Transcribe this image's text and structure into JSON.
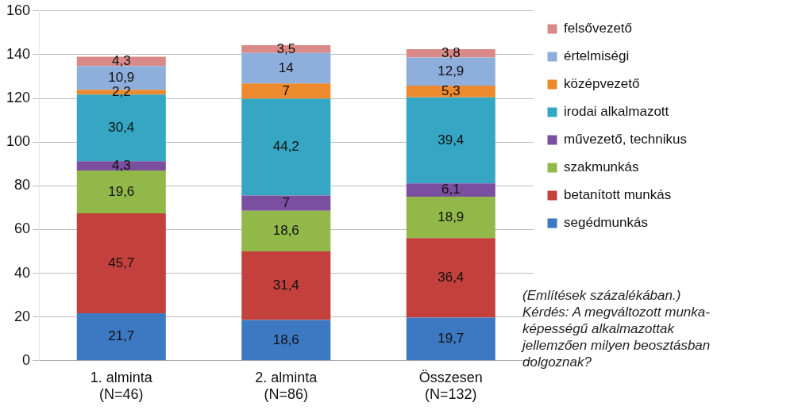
{
  "chart_data": {
    "type": "bar",
    "stacked": true,
    "categories": [
      "1. alminta\n(N=46)",
      "2. alminta\n(N=86)",
      "Összesen\n(N=132)"
    ],
    "series": [
      {
        "name": "segédmunkás",
        "color": "#3d78c2",
        "values": [
          21.7,
          18.6,
          19.7
        ],
        "value_labels": [
          "21,7",
          "18,6",
          "19,7"
        ]
      },
      {
        "name": "betanított munkás",
        "color": "#c4403d",
        "values": [
          45.7,
          31.4,
          36.4
        ],
        "value_labels": [
          "45,7",
          "31,4",
          "36,4"
        ]
      },
      {
        "name": "szakmunkás",
        "color": "#92b84a",
        "values": [
          19.6,
          18.6,
          18.9
        ],
        "value_labels": [
          "19,6",
          "18,6",
          "18,9"
        ]
      },
      {
        "name": "művezető, technikus",
        "color": "#7a4fa0",
        "values": [
          4.3,
          7,
          6.1
        ],
        "value_labels": [
          "4,3",
          "7",
          "6,1"
        ]
      },
      {
        "name": "irodai alkalmazott",
        "color": "#35a7c4",
        "values": [
          30.4,
          44.2,
          39.4
        ],
        "value_labels": [
          "30,4",
          "44,2",
          "39,4"
        ]
      },
      {
        "name": "középvezető",
        "color": "#ee8a2e",
        "values": [
          2.2,
          7,
          5.3
        ],
        "value_labels": [
          "2,2",
          "7",
          "5,3"
        ]
      },
      {
        "name": "értelmiségi",
        "color": "#8eaedb",
        "values": [
          10.9,
          14,
          12.9
        ],
        "value_labels": [
          "10,9",
          "14",
          "12,9"
        ]
      },
      {
        "name": "felsővezető",
        "color": "#d98a88",
        "values": [
          4.3,
          3.5,
          3.8
        ],
        "value_labels": [
          "4,3",
          "3,5",
          "3,8"
        ]
      }
    ],
    "ylim": [
      0,
      160
    ],
    "yticks": [
      0,
      20,
      40,
      60,
      80,
      100,
      120,
      140,
      160
    ],
    "grid": "y",
    "legend": "right",
    "annotations": [
      "(Említések százalékában.)\nKérdés: A megváltozott munka-\nképességű alkalmazottak\njellemzően milyen beosztásban\ndolgoznak?"
    ]
  }
}
